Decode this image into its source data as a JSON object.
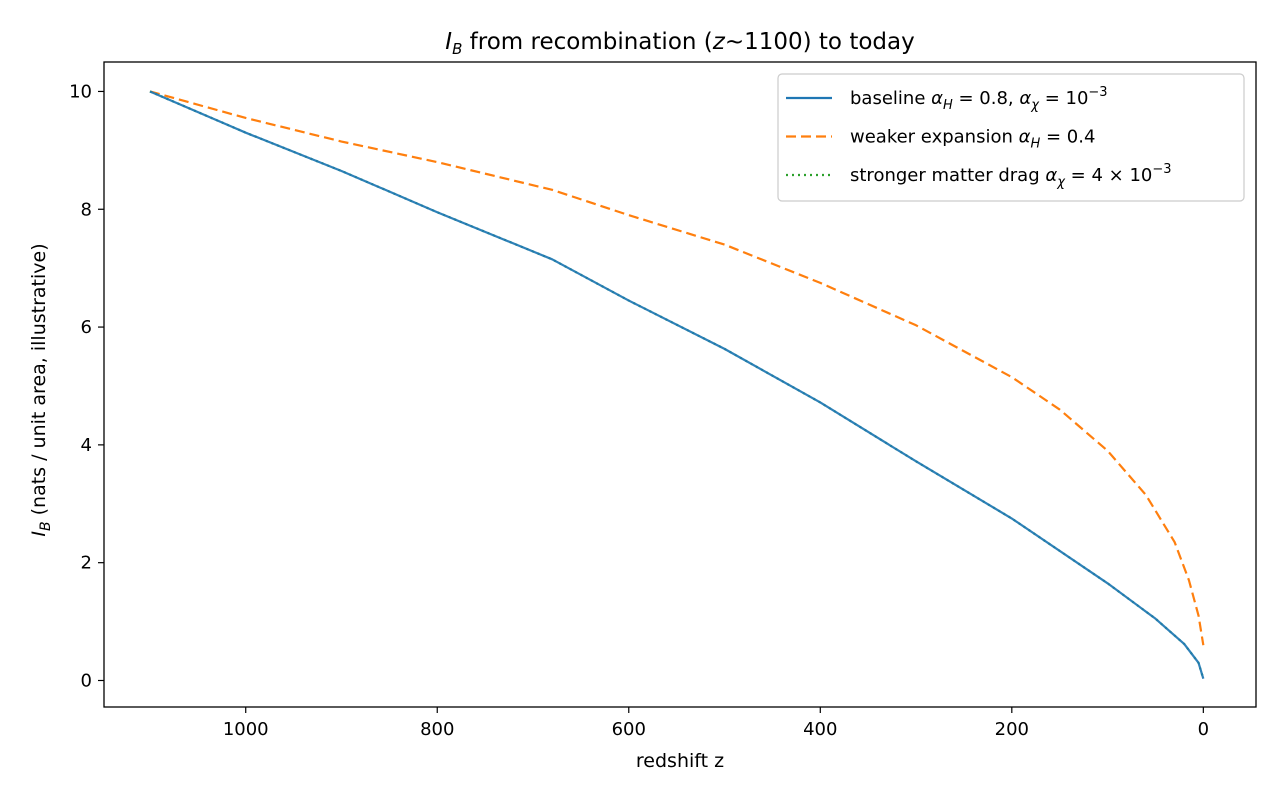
{
  "chart_data": {
    "type": "line",
    "title": {
      "pre": "I",
      "pre_sub": "B",
      "mid": " from recombination (",
      "z": "z",
      "post": "~1100) to today"
    },
    "xlabel": "redshift z",
    "ylabel": {
      "main": "I",
      "sub": "B",
      "rest": " (nats / unit area, illustrative)"
    },
    "xlim": [
      1148,
      -55
    ],
    "ylim": [
      -0.45,
      10.5
    ],
    "x_inverted": true,
    "xticks": [
      1000,
      800,
      600,
      400,
      200,
      0
    ],
    "yticks": [
      0,
      2,
      4,
      6,
      8,
      10
    ],
    "grid": false,
    "legend_position": "upper right",
    "colors": {
      "baseline": "#1f77b4",
      "weaker": "#ff7f0e",
      "stronger": "#2ca02c"
    },
    "series": [
      {
        "key": "baseline",
        "label": {
          "text": "baseline ",
          "math": [
            {
              "t": "α",
              "i": true
            },
            {
              "t": "H",
              "sub": true,
              "i": true
            },
            {
              "t": " = 0.8,  "
            },
            {
              "t": "α",
              "i": true
            },
            {
              "t": "χ",
              "sub": true,
              "i": true
            },
            {
              "t": " = 10"
            },
            {
              "t": "−3",
              "sup": true
            }
          ]
        },
        "style": "solid",
        "x": [
          1100,
          1000,
          900,
          800,
          680,
          600,
          500,
          400,
          300,
          200,
          100,
          50,
          20,
          5,
          0
        ],
        "y": [
          10.0,
          9.3,
          8.65,
          7.95,
          7.15,
          6.45,
          5.63,
          4.72,
          3.72,
          2.75,
          1.65,
          1.05,
          0.62,
          0.3,
          0.03
        ]
      },
      {
        "key": "weaker",
        "label": {
          "text": "weaker expansion ",
          "math": [
            {
              "t": "α",
              "i": true
            },
            {
              "t": "H",
              "sub": true,
              "i": true
            },
            {
              "t": " = 0.4"
            }
          ]
        },
        "style": "dashed",
        "x": [
          1100,
          1000,
          900,
          800,
          680,
          600,
          500,
          400,
          300,
          200,
          150,
          100,
          60,
          30,
          15,
          5,
          0
        ],
        "y": [
          10.0,
          9.55,
          9.15,
          8.8,
          8.33,
          7.9,
          7.4,
          6.75,
          6.03,
          5.15,
          4.6,
          3.9,
          3.15,
          2.35,
          1.7,
          1.1,
          0.6
        ]
      },
      {
        "key": "stronger",
        "label": {
          "text": "stronger matter drag ",
          "math": [
            {
              "t": "α",
              "i": true
            },
            {
              "t": "χ",
              "sub": true,
              "i": true
            },
            {
              "t": " = 4 × 10"
            },
            {
              "t": "−3",
              "sup": true
            }
          ]
        },
        "style": "dotted",
        "x": [
          1100,
          1000,
          900,
          800,
          680,
          600,
          500,
          400,
          300,
          200,
          100,
          50,
          20,
          5,
          0
        ],
        "y": [
          10.0,
          9.3,
          8.65,
          7.95,
          7.15,
          6.45,
          5.63,
          4.72,
          3.72,
          2.75,
          1.65,
          1.05,
          0.62,
          0.3,
          0.03
        ]
      }
    ]
  }
}
